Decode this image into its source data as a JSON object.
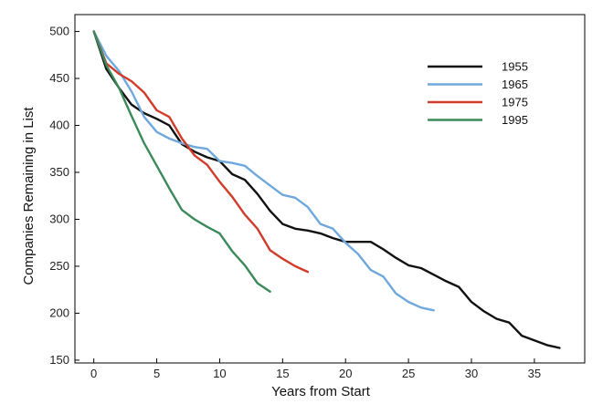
{
  "chart_data": {
    "type": "line",
    "title": "",
    "xlabel": "Years from Start",
    "ylabel": "Companies Remaining in List",
    "xlim": [
      -1.5,
      39
    ],
    "ylim": [
      147,
      518
    ],
    "xticks": [
      0,
      5,
      10,
      15,
      20,
      25,
      30,
      35
    ],
    "yticks": [
      150,
      200,
      250,
      300,
      350,
      400,
      450,
      500
    ],
    "grid": false,
    "legend_position": "top-right",
    "series": [
      {
        "name": "1955",
        "color": "#111111",
        "x": [
          0,
          1,
          2,
          3,
          4,
          5,
          6,
          7,
          8,
          9,
          10,
          11,
          12,
          13,
          14,
          15,
          16,
          17,
          18,
          19,
          20,
          21,
          22,
          23,
          24,
          25,
          26,
          27,
          28,
          29,
          30,
          31,
          32,
          33,
          34,
          35,
          36,
          37
        ],
        "y": [
          500,
          460,
          440,
          422,
          413,
          407,
          400,
          380,
          372,
          366,
          362,
          348,
          342,
          327,
          309,
          295,
          290,
          288,
          285,
          280,
          276,
          276,
          276,
          268,
          259,
          251,
          248,
          241,
          234,
          228,
          212,
          202,
          194,
          190,
          176,
          171,
          166,
          163
        ]
      },
      {
        "name": "1965",
        "color": "#6fa8dc",
        "x": [
          0,
          1,
          2,
          3,
          4,
          5,
          6,
          7,
          8,
          9,
          10,
          11,
          12,
          13,
          14,
          15,
          16,
          17,
          18,
          19,
          20,
          21,
          22,
          23,
          24,
          25,
          26,
          27
        ],
        "y": [
          500,
          474,
          458,
          436,
          409,
          393,
          386,
          381,
          377,
          375,
          362,
          360,
          357,
          346,
          336,
          326,
          323,
          313,
          295,
          290,
          275,
          263,
          246,
          239,
          221,
          212,
          206,
          203
        ]
      },
      {
        "name": "1975",
        "color": "#d23c2a",
        "x": [
          0,
          1,
          2,
          3,
          4,
          5,
          6,
          7,
          8,
          9,
          10,
          11,
          12,
          13,
          14,
          15,
          16,
          17
        ],
        "y": [
          500,
          466,
          455,
          447,
          435,
          416,
          409,
          386,
          368,
          358,
          340,
          324,
          305,
          290,
          267,
          258,
          250,
          244
        ]
      },
      {
        "name": "1995",
        "color": "#3c8a5a",
        "x": [
          0,
          1,
          2,
          3,
          4,
          5,
          6,
          7,
          8,
          9,
          10,
          11,
          12,
          13,
          14
        ],
        "y": [
          500,
          464,
          440,
          410,
          381,
          357,
          333,
          310,
          300,
          292,
          285,
          266,
          251,
          232,
          223
        ]
      }
    ]
  }
}
